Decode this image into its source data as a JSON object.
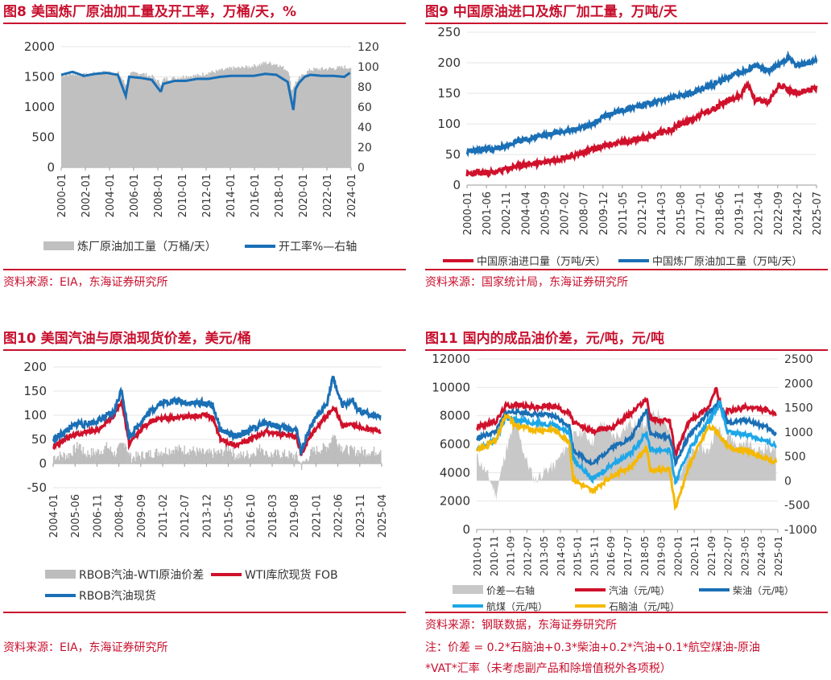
{
  "panels": [
    {
      "title": "图8  美国炼厂原油加工量及开工率，万桶/天，%",
      "source": "资料来源：EIA，东海证券研究所",
      "note1": "",
      "note2": ""
    },
    {
      "title": "图9  中国原油进口及炼厂加工量，万吨/天",
      "source": "资料来源：国家统计局，东海证券研究所",
      "note1": "",
      "note2": ""
    },
    {
      "title": "图10  美国汽油与原油现货价差，美元/桶",
      "source": "资料来源：EIA，东海证券研究所",
      "note1": "",
      "note2": ""
    },
    {
      "title": "图11  国内的成品油价差，元/吨，元/吨",
      "source": "资料来源：钢联数据，东海证券研究所",
      "note1": "注：价差 = 0.2*石脑油+0.3*柴油+0.2*汽油+0.1*航空煤油-原油",
      "note2": "*VAT*汇率（未考虑副产品和除增值税外各项税）"
    }
  ],
  "chart_data": [
    {
      "type": "bar",
      "x_ticks": [
        "2000-01",
        "2002-01",
        "2004-01",
        "2006-01",
        "2008-01",
        "2010-01",
        "2012-01",
        "2014-01",
        "2016-01",
        "2018-01",
        "2020-01",
        "2022-01",
        "2024-01"
      ],
      "ylim_left": [
        0,
        2000
      ],
      "yticks_left": [
        0,
        500,
        1000,
        1500,
        2000
      ],
      "ylim_right": [
        0,
        120
      ],
      "yticks_right": [
        0,
        20,
        40,
        60,
        80,
        100,
        120
      ],
      "x_range": [
        2000.0,
        2025.6
      ],
      "series": [
        {
          "name": "炼厂原油加工量（万桶/天）",
          "kind": "bar",
          "axis": "left",
          "color": "#c0c0c0",
          "x": [
            2000.0,
            2001.0,
            2002.0,
            2003.0,
            2004.0,
            2005.0,
            2005.7,
            2006.0,
            2007.0,
            2008.0,
            2008.8,
            2009.0,
            2010.0,
            2011.0,
            2012.0,
            2013.0,
            2014.0,
            2015.0,
            2016.0,
            2017.0,
            2018.0,
            2019.0,
            2020.0,
            2020.3,
            2020.7,
            2021.0,
            2021.5,
            2022.0,
            2023.0,
            2024.0,
            2025.0,
            2025.5
          ],
          "y": [
            1530,
            1550,
            1530,
            1560,
            1580,
            1560,
            1350,
            1550,
            1560,
            1500,
            1380,
            1460,
            1480,
            1510,
            1520,
            1570,
            1600,
            1640,
            1650,
            1680,
            1730,
            1710,
            1600,
            1280,
            1420,
            1480,
            1560,
            1620,
            1630,
            1640,
            1660,
            1650
          ]
        },
        {
          "name": "开工率%—右轴",
          "kind": "line",
          "axis": "right",
          "color": "#1a6fb5",
          "x": [
            2000.0,
            2001.0,
            2002.0,
            2003.0,
            2004.0,
            2005.0,
            2005.7,
            2006.0,
            2007.0,
            2008.0,
            2008.8,
            2009.0,
            2010.0,
            2011.0,
            2012.0,
            2013.0,
            2014.0,
            2015.0,
            2016.0,
            2017.0,
            2018.0,
            2019.0,
            2020.0,
            2020.3,
            2020.5,
            2020.7,
            2021.0,
            2021.5,
            2022.0,
            2023.0,
            2024.0,
            2025.0,
            2025.5
          ],
          "y": [
            92,
            95,
            91,
            93,
            94,
            92,
            71,
            90,
            89,
            87,
            75,
            83,
            86,
            86,
            88,
            88,
            90,
            91,
            91,
            91,
            93,
            92,
            85,
            68,
            57,
            78,
            84,
            90,
            92,
            91,
            91,
            90,
            94
          ]
        }
      ]
    },
    {
      "type": "line",
      "x_ticks": [
        "2000-01",
        "2001-06",
        "2002-11",
        "2004-04",
        "2005-09",
        "2007-02",
        "2008-07",
        "2009-12",
        "2011-05",
        "2012-10",
        "2014-03",
        "2015-08",
        "2017-01",
        "2018-06",
        "2019-11",
        "2021-04",
        "2022-09",
        "2024-02",
        "2025-07"
      ],
      "ylim": [
        0,
        250
      ],
      "yticks": [
        0,
        50,
        100,
        150,
        200,
        250
      ],
      "x_range": [
        2000.0,
        2025.5
      ],
      "series": [
        {
          "name": "中国原油进口量（万吨/天）",
          "color": "#d0112b",
          "x": [
            2000.0,
            2001.0,
            2002.0,
            2003.0,
            2004.0,
            2005.0,
            2006.0,
            2007.0,
            2008.0,
            2009.0,
            2010.0,
            2011.0,
            2012.0,
            2013.0,
            2014.0,
            2015.0,
            2016.0,
            2017.0,
            2018.0,
            2019.0,
            2020.0,
            2020.5,
            2021.0,
            2022.0,
            2022.8,
            2023.5,
            2024.0,
            2025.0,
            2025.5
          ],
          "y": [
            18,
            20,
            20,
            27,
            33,
            35,
            40,
            45,
            49,
            57,
            64,
            69,
            74,
            77,
            85,
            92,
            103,
            115,
            125,
            138,
            148,
            165,
            140,
            135,
            165,
            155,
            150,
            155,
            160
          ]
        },
        {
          "name": "中国炼厂原油加工量（万吨/天）",
          "color": "#1a6fb5",
          "x": [
            2000.0,
            2001.0,
            2002.0,
            2003.0,
            2004.0,
            2005.0,
            2006.0,
            2007.0,
            2008.0,
            2009.0,
            2010.0,
            2011.0,
            2012.0,
            2013.0,
            2014.0,
            2015.0,
            2016.0,
            2017.0,
            2018.0,
            2019.0,
            2020.0,
            2021.0,
            2022.0,
            2023.0,
            2023.5,
            2024.0,
            2025.0,
            2025.5
          ],
          "y": [
            55,
            58,
            60,
            65,
            74,
            78,
            83,
            88,
            92,
            98,
            112,
            120,
            127,
            131,
            137,
            143,
            148,
            155,
            165,
            175,
            185,
            195,
            187,
            200,
            210,
            195,
            200,
            205
          ]
        }
      ]
    },
    {
      "type": "line",
      "x_ticks": [
        "2004-01",
        "2005-06",
        "2006-11",
        "2008-04",
        "2009-09",
        "2011-02",
        "2012-07",
        "2013-12",
        "2015-05",
        "2016-10",
        "2018-03",
        "2019-08",
        "2021-01",
        "2022-06",
        "2023-11",
        "2025-04"
      ],
      "ylim": [
        -50,
        200
      ],
      "yticks": [
        -50,
        0,
        50,
        100,
        150,
        200
      ],
      "x_range": [
        2004.0,
        2025.6
      ],
      "series": [
        {
          "name": "RBOB汽油-WTI原油价差",
          "kind": "bar",
          "color": "#bdbdbd",
          "x": [
            2004.0,
            2005.0,
            2005.7,
            2006.0,
            2007.0,
            2007.5,
            2008.0,
            2008.7,
            2009.0,
            2010.0,
            2011.0,
            2012.0,
            2013.0,
            2014.0,
            2015.0,
            2015.5,
            2016.0,
            2017.0,
            2017.7,
            2018.0,
            2019.0,
            2020.0,
            2020.3,
            2021.0,
            2022.0,
            2022.4,
            2023.0,
            2024.0,
            2025.0,
            2025.5
          ],
          "y": [
            15,
            18,
            40,
            20,
            25,
            35,
            20,
            45,
            12,
            18,
            25,
            30,
            28,
            20,
            22,
            35,
            15,
            20,
            35,
            18,
            20,
            15,
            -5,
            25,
            35,
            60,
            30,
            25,
            25,
            28
          ]
        },
        {
          "name": "WTI库欣现货 FOB",
          "kind": "line",
          "color": "#d0112b",
          "x": [
            2004.0,
            2005.0,
            2006.0,
            2007.0,
            2008.0,
            2008.5,
            2009.0,
            2010.0,
            2011.0,
            2012.0,
            2013.0,
            2014.0,
            2014.5,
            2015.0,
            2016.0,
            2017.0,
            2018.0,
            2019.0,
            2020.0,
            2020.3,
            2021.0,
            2022.0,
            2022.5,
            2023.0,
            2024.0,
            2025.0,
            2025.5
          ],
          "y": [
            35,
            55,
            65,
            70,
            100,
            130,
            40,
            78,
            95,
            95,
            98,
            100,
            95,
            50,
            38,
            50,
            65,
            60,
            55,
            20,
            60,
            100,
            115,
            80,
            78,
            70,
            65
          ]
        },
        {
          "name": "RBOB汽油现货",
          "kind": "line",
          "color": "#1a6fb5",
          "x": [
            2004.0,
            2005.0,
            2005.7,
            2006.0,
            2007.0,
            2008.0,
            2008.5,
            2009.0,
            2010.0,
            2011.0,
            2012.0,
            2013.0,
            2014.0,
            2014.5,
            2015.0,
            2016.0,
            2017.0,
            2018.0,
            2019.0,
            2020.0,
            2020.3,
            2021.0,
            2022.0,
            2022.4,
            2023.0,
            2023.7,
            2024.0,
            2025.0,
            2025.5
          ],
          "y": [
            50,
            70,
            85,
            80,
            90,
            105,
            155,
            55,
            95,
            125,
            130,
            125,
            125,
            120,
            70,
            55,
            70,
            85,
            75,
            70,
            25,
            80,
            125,
            178,
            120,
            130,
            110,
            100,
            100
          ]
        }
      ]
    },
    {
      "type": "line",
      "x_ticks": [
        "2010-01",
        "2010-11",
        "2011-09",
        "2012-07",
        "2013-05",
        "2014-03",
        "2015-01",
        "2015-11",
        "2016-09",
        "2017-07",
        "2018-05",
        "2019-03",
        "2020-01",
        "2020-11",
        "2021-09",
        "2022-07",
        "2023-05",
        "2024-03",
        "2025-01"
      ],
      "ylim_left": [
        0,
        12000
      ],
      "yticks_left": [
        0,
        2000,
        4000,
        6000,
        8000,
        10000,
        12000
      ],
      "ylim_right": [
        -1000,
        2500
      ],
      "yticks_right": [
        -1000,
        -500,
        0,
        500,
        1000,
        1500,
        2000,
        2500
      ],
      "x_range": [
        2010.0,
        2025.6
      ],
      "series": [
        {
          "name": "价差—右轴",
          "kind": "area",
          "axis": "right",
          "color": "#c8c8c8",
          "x": [
            2010.0,
            2010.6,
            2011.0,
            2011.5,
            2012.0,
            2012.5,
            2013.0,
            2013.5,
            2014.0,
            2014.5,
            2015.0,
            2015.5,
            2016.0,
            2016.5,
            2017.0,
            2017.5,
            2018.0,
            2018.5,
            2019.0,
            2019.5,
            2020.0,
            2020.2,
            2020.5,
            2021.0,
            2021.5,
            2022.0,
            2022.4,
            2022.8,
            2023.0,
            2023.5,
            2024.0,
            2024.5,
            2025.0,
            2025.5
          ],
          "y": [
            500,
            100,
            -300,
            600,
            1200,
            500,
            0,
            200,
            300,
            600,
            900,
            1000,
            800,
            1200,
            900,
            1000,
            1200,
            1100,
            1300,
            1400,
            1000,
            -100,
            200,
            500,
            700,
            600,
            1100,
            900,
            1000,
            700,
            800,
            600,
            700,
            650
          ]
        },
        {
          "name": "汽油（元/吨）",
          "kind": "line",
          "axis": "left",
          "color": "#d0112b",
          "x": [
            2010.0,
            2011.0,
            2011.5,
            2012.0,
            2013.0,
            2014.0,
            2014.8,
            2015.0,
            2016.0,
            2017.0,
            2018.0,
            2018.8,
            2019.0,
            2020.0,
            2020.3,
            2021.0,
            2022.0,
            2022.4,
            2022.8,
            2023.0,
            2024.0,
            2025.0,
            2025.5
          ],
          "y": [
            7200,
            7600,
            8700,
            8800,
            8600,
            8700,
            8200,
            7500,
            6900,
            7200,
            8200,
            9200,
            7800,
            7600,
            5300,
            7600,
            8600,
            9900,
            8000,
            8300,
            8600,
            8400,
            8000
          ]
        },
        {
          "name": "柴油（元/吨）",
          "kind": "line",
          "axis": "left",
          "color": "#1a6fb5",
          "x": [
            2010.0,
            2011.0,
            2011.5,
            2012.0,
            2013.0,
            2014.0,
            2014.8,
            2015.0,
            2016.0,
            2017.0,
            2018.0,
            2018.8,
            2019.0,
            2020.0,
            2020.3,
            2021.0,
            2022.0,
            2022.6,
            2023.0,
            2024.0,
            2025.0,
            2025.5
          ],
          "y": [
            6400,
            6900,
            8200,
            8300,
            8100,
            8000,
            7300,
            5600,
            4600,
            5800,
            6400,
            8500,
            6700,
            6500,
            4700,
            6600,
            8200,
            8900,
            7500,
            7700,
            7200,
            6700
          ]
        },
        {
          "name": "航煤（元/吨）",
          "kind": "line",
          "axis": "left",
          "color": "#1ea7e8",
          "x": [
            2010.0,
            2011.0,
            2011.5,
            2012.0,
            2013.0,
            2014.0,
            2014.8,
            2015.0,
            2016.0,
            2017.0,
            2018.0,
            2018.8,
            2019.0,
            2020.0,
            2020.3,
            2021.0,
            2022.0,
            2022.6,
            2023.0,
            2024.0,
            2025.0,
            2025.5
          ],
          "y": [
            5600,
            6300,
            7900,
            7700,
            7500,
            7400,
            6800,
            5000,
            3500,
            4600,
            5400,
            6800,
            5600,
            5600,
            3300,
            5600,
            7600,
            8900,
            6800,
            6700,
            6200,
            5900
          ]
        },
        {
          "name": "石脑油（元/吨）",
          "kind": "line",
          "axis": "left",
          "color": "#f5b800",
          "x": [
            2010.0,
            2011.0,
            2011.5,
            2012.0,
            2013.0,
            2014.0,
            2014.8,
            2015.0,
            2016.0,
            2017.0,
            2018.0,
            2018.8,
            2019.0,
            2020.0,
            2020.3,
            2021.0,
            2022.0,
            2022.4,
            2023.0,
            2024.0,
            2025.0,
            2025.5
          ],
          "y": [
            5500,
            6300,
            8100,
            7300,
            7000,
            7000,
            6200,
            3500,
            2700,
            3800,
            4400,
            5800,
            4200,
            4200,
            1500,
            4500,
            7200,
            7000,
            5800,
            5500,
            5000,
            4700
          ]
        }
      ]
    }
  ],
  "legend": {
    "c0": [
      "炼厂原油加工量（万桶/天）",
      "开工率%—右轴"
    ],
    "c1": [
      "中国原油进口量（万吨/天）",
      "中国炼厂原油加工量（万吨/天）"
    ],
    "c2": [
      "RBOB汽油-WTI原油价差",
      "WTI库欣现货 FOB",
      "RBOB汽油现货"
    ],
    "c3": [
      "价差—右轴",
      "汽油（元/吨）",
      "柴油（元/吨）",
      "航煤（元/吨）",
      "石脑油（元/吨）"
    ]
  }
}
